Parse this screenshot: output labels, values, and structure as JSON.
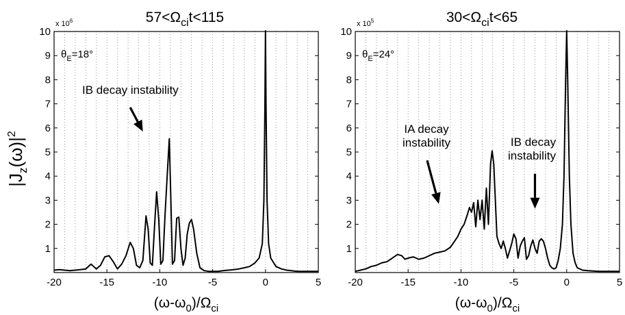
{
  "figure": {
    "ylabel_main": "|J",
    "ylabel_sub": "z",
    "ylabel_paren": "(ω)|",
    "ylabel_sup": "2"
  },
  "chart_data": [
    {
      "type": "line",
      "title_parts": {
        "pre": "57<Ω",
        "sub": "ci",
        "post": "t<115"
      },
      "xlabel_parts": {
        "pre": "(ω-ω",
        "sub": "0",
        "mid": ")/Ω",
        "sub2": "ci"
      },
      "xlim": [
        -20,
        5
      ],
      "ylim": [
        0,
        10
      ],
      "xticks": [
        -20,
        -15,
        -10,
        -5,
        0,
        5
      ],
      "yticks": [
        1,
        2,
        3,
        4,
        5,
        6,
        7,
        8,
        9,
        10
      ],
      "ymultiplier": {
        "base": "x 10",
        "exp": "6"
      },
      "theta_label": {
        "pre": "θ",
        "sub": "E",
        "post": "=18°"
      },
      "grid": "vertical dotted",
      "annotations": [
        {
          "lines": [
            "IB decay instability"
          ],
          "arrow_from": [
            -12.8,
            6.85
          ],
          "arrow_to": [
            -11.6,
            5.85
          ]
        }
      ],
      "series": [
        {
          "x": [
            -20,
            -19.5,
            -19,
            -18.5,
            -18,
            -17.5,
            -17,
            -16.5,
            -16,
            -15.6,
            -15.2,
            -14.8,
            -14.4,
            -14,
            -13.6,
            -13.2,
            -12.8,
            -12.5,
            -12.2,
            -11.9,
            -11.6,
            -11.3,
            -11.1,
            -10.9,
            -10.7,
            -10.5,
            -10.3,
            -10.1,
            -9.9,
            -9.7,
            -9.5,
            -9.3,
            -9.1,
            -8.95,
            -8.8,
            -8.6,
            -8.4,
            -8.2,
            -8,
            -7.8,
            -7.6,
            -7.4,
            -7.2,
            -7,
            -6.8,
            -6.5,
            -6.2,
            -5.8,
            -5.4,
            -5,
            -4.5,
            -4,
            -3.5,
            -3,
            -2.5,
            -2,
            -1.5,
            -1,
            -0.6,
            -0.3,
            -0.15,
            -0.05,
            0,
            0.05,
            0.15,
            0.3,
            0.5,
            1,
            1.5,
            2,
            3,
            4,
            5
          ],
          "y": [
            0.1,
            0.12,
            0.1,
            0.08,
            0.1,
            0.12,
            0.15,
            0.35,
            0.15,
            0.3,
            0.65,
            0.7,
            0.45,
            0.15,
            0.35,
            0.7,
            1.25,
            1.0,
            0.3,
            0.2,
            0.5,
            2.35,
            1.8,
            0.4,
            0.3,
            1.9,
            3.35,
            2.2,
            0.35,
            0.5,
            2.4,
            4.0,
            5.55,
            3.0,
            0.35,
            0.5,
            2.25,
            2.3,
            1.0,
            0.3,
            0.6,
            1.6,
            2.05,
            2.2,
            1.8,
            0.8,
            0.2,
            0.08,
            0.05,
            0.05,
            0.05,
            0.08,
            0.1,
            0.12,
            0.15,
            0.2,
            0.25,
            0.4,
            0.6,
            1.2,
            3.0,
            7.0,
            10.5,
            7.0,
            3.0,
            1.2,
            0.6,
            0.25,
            0.15,
            0.1,
            0.05,
            0.05,
            0.05
          ]
        }
      ]
    },
    {
      "type": "line",
      "title_parts": {
        "pre": "30<Ω",
        "sub": "ci",
        "post": "t<65"
      },
      "xlabel_parts": {
        "pre": "(ω-ω",
        "sub": "0",
        "mid": ")/Ω",
        "sub2": "ci"
      },
      "xlim": [
        -20,
        5
      ],
      "ylim": [
        0,
        10
      ],
      "xticks": [
        -20,
        -15,
        -10,
        -5,
        0,
        5
      ],
      "yticks": [
        1,
        2,
        3,
        4,
        5,
        6,
        7,
        8,
        9,
        10
      ],
      "ymultiplier": {
        "base": "x 10",
        "exp": "5"
      },
      "theta_label": {
        "pre": "θ",
        "sub": "E",
        "post": "=24°"
      },
      "grid": "vertical dotted",
      "annotations": [
        {
          "lines": [
            "IA decay",
            "instability"
          ],
          "arrow_from": [
            -13.2,
            4.65
          ],
          "arrow_to": [
            -12.1,
            2.85
          ]
        },
        {
          "lines": [
            "IB decay",
            "instability"
          ],
          "arrow_from": [
            -3.0,
            4.1
          ],
          "arrow_to": [
            -3.0,
            2.65
          ]
        }
      ],
      "series": [
        {
          "x": [
            -20,
            -19.5,
            -19,
            -18.5,
            -18,
            -17.5,
            -17,
            -16.5,
            -16,
            -15.6,
            -15.3,
            -15,
            -14.5,
            -14,
            -13.5,
            -13,
            -12.5,
            -12,
            -11.5,
            -11,
            -10.6,
            -10.3,
            -10,
            -9.7,
            -9.4,
            -9.2,
            -9,
            -8.8,
            -8.6,
            -8.4,
            -8.2,
            -8,
            -7.8,
            -7.6,
            -7.4,
            -7.2,
            -7.05,
            -6.9,
            -6.75,
            -6.6,
            -6.4,
            -6.2,
            -6,
            -5.8,
            -5.6,
            -5.4,
            -5.2,
            -5,
            -4.8,
            -4.6,
            -4.4,
            -4.2,
            -4,
            -3.8,
            -3.6,
            -3.4,
            -3.2,
            -3,
            -2.8,
            -2.6,
            -2.4,
            -2.2,
            -2,
            -1.8,
            -1.6,
            -1.4,
            -1.2,
            -1,
            -0.8,
            -0.6,
            -0.4,
            -0.25,
            -0.1,
            0,
            0.1,
            0.25,
            0.4,
            0.6,
            0.8,
            1,
            1.5,
            2,
            3,
            4,
            5
          ],
          "y": [
            0.05,
            0.1,
            0.15,
            0.25,
            0.3,
            0.4,
            0.45,
            0.6,
            0.75,
            0.7,
            0.55,
            0.6,
            0.65,
            0.55,
            0.6,
            0.7,
            0.8,
            0.85,
            0.9,
            1.05,
            1.3,
            1.5,
            1.8,
            2.0,
            2.4,
            2.7,
            2.5,
            2.9,
            1.9,
            3.0,
            2.2,
            3.0,
            1.8,
            3.5,
            2.0,
            4.5,
            5.05,
            4.5,
            3.0,
            1.5,
            1.2,
            1.0,
            1.3,
            1.0,
            0.6,
            0.9,
            1.2,
            1.6,
            1.4,
            0.6,
            1.1,
            1.3,
            1.45,
            0.55,
            0.7,
            1.1,
            1.35,
            1.0,
            0.8,
            1.3,
            1.4,
            1.3,
            1.0,
            0.6,
            0.3,
            0.2,
            0.15,
            0.2,
            0.5,
            1.0,
            2.0,
            4.0,
            8.0,
            10.5,
            8.0,
            4.0,
            2.0,
            0.8,
            0.4,
            0.2,
            0.1,
            0.08,
            0.05,
            0.05,
            0.05
          ]
        }
      ]
    }
  ]
}
